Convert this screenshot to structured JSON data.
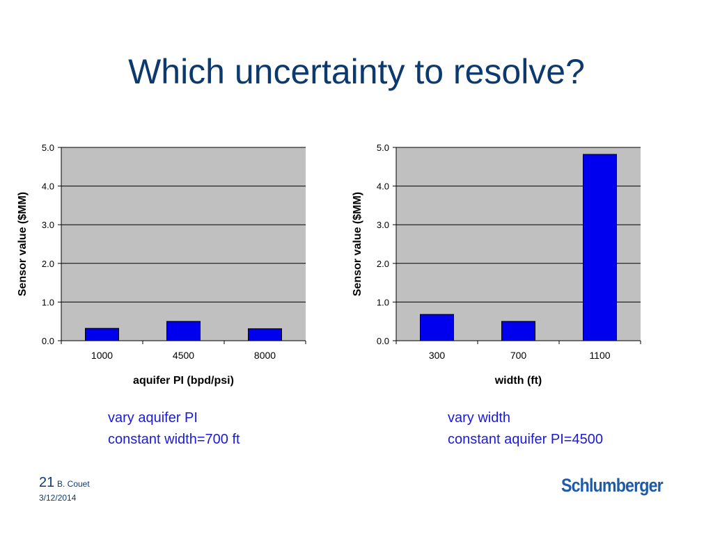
{
  "slide": {
    "title": "Which uncertainty to resolve?",
    "page_number": "21",
    "author": "B. Couet",
    "date": "3/12/2014",
    "logo_text": "Schlumberger"
  },
  "captions": {
    "left": [
      "vary aquifer PI",
      "constant width=700 ft"
    ],
    "right": [
      "vary width",
      "constant aquifer PI=4500"
    ]
  },
  "colors": {
    "title": "#0d3a6e",
    "caption": "#1a1ad8",
    "bar": "#0000ee",
    "plot_background": "#c0c0c0",
    "logo": "#1e5aa8"
  },
  "chart_data": [
    {
      "type": "bar",
      "categories": [
        "1000",
        "4500",
        "8000"
      ],
      "values": [
        0.32,
        0.5,
        0.31
      ],
      "ylabel": "Sensor value ($MM)",
      "xlabel": "aquifer PI (bpd/psi)",
      "ylim": [
        0,
        5
      ],
      "yticks": [
        "0.0",
        "1.0",
        "2.0",
        "3.0",
        "4.0",
        "5.0"
      ],
      "grid": true
    },
    {
      "type": "bar",
      "categories": [
        "300",
        "700",
        "1100"
      ],
      "values": [
        0.68,
        0.5,
        4.82
      ],
      "ylabel": "Sensor value ($MM)",
      "xlabel": "width (ft)",
      "ylim": [
        0,
        5
      ],
      "yticks": [
        "0.0",
        "1.0",
        "2.0",
        "3.0",
        "4.0",
        "5.0"
      ],
      "grid": true
    }
  ]
}
